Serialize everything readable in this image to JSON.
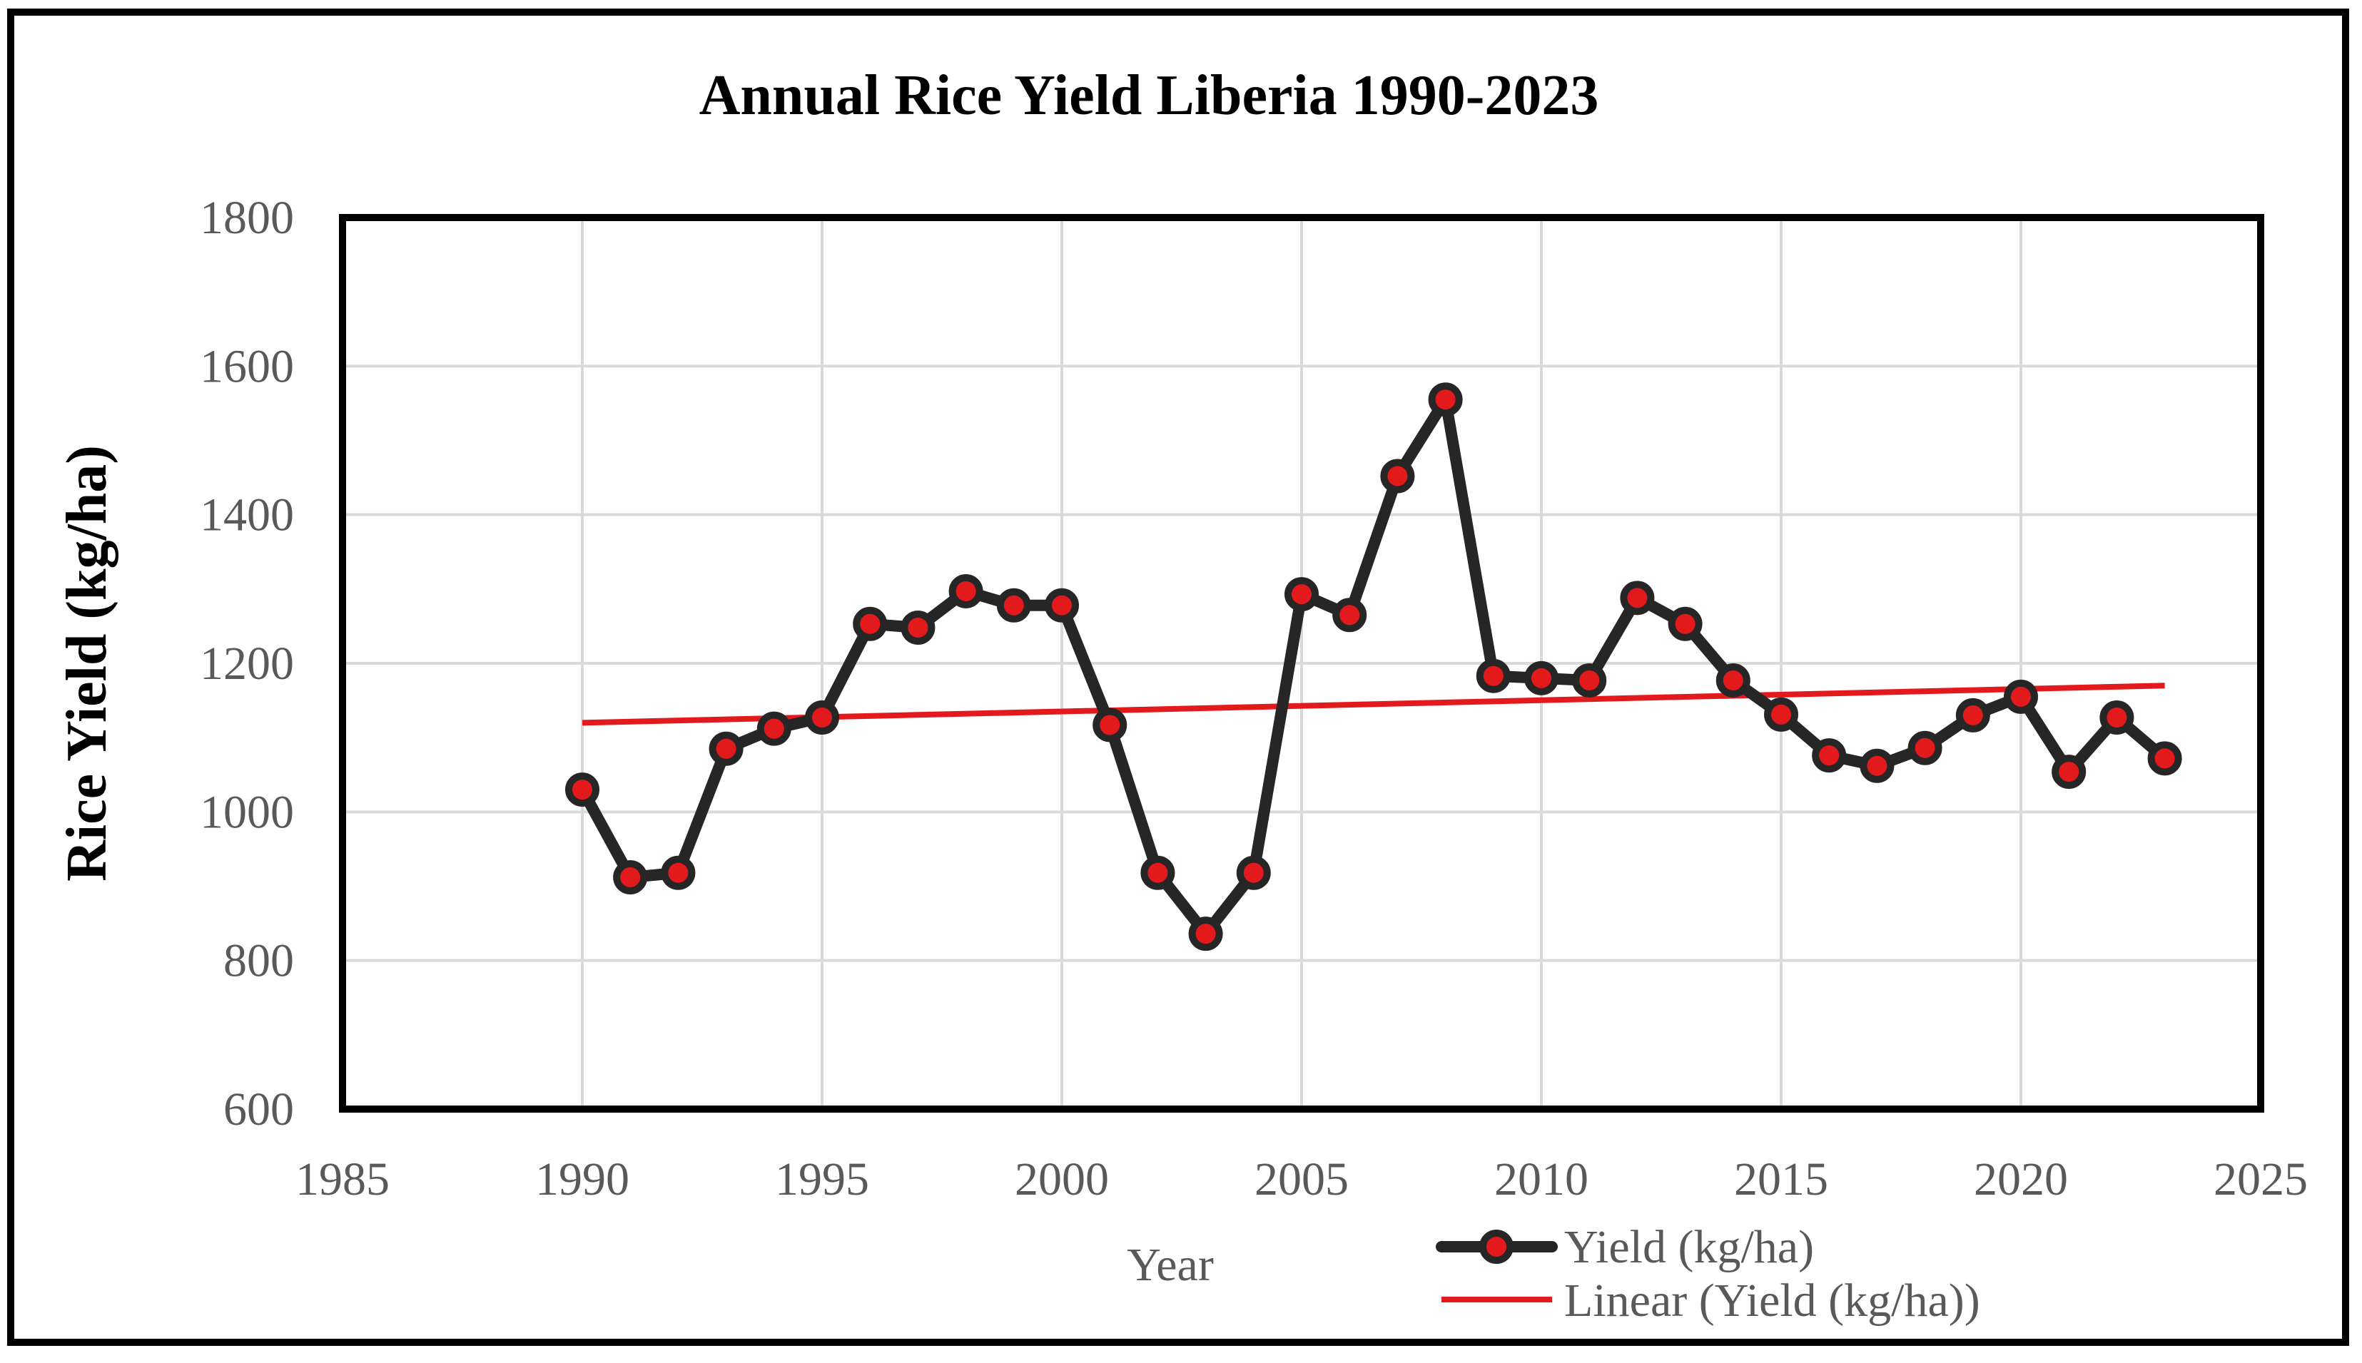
{
  "chart_data": {
    "type": "line",
    "title": "Annual  Rice  Yield  Liberia  1990-2023",
    "xlabel": "Year",
    "ylabel": "Rice Yield  (kg/ha)",
    "xlim": [
      1985,
      2025
    ],
    "ylim": [
      600,
      1800
    ],
    "x_ticks": [
      "1985",
      "1990",
      "1995",
      "2000",
      "2005",
      "2010",
      "2015",
      "2020",
      "2025"
    ],
    "y_ticks": [
      "600",
      "800",
      "1000",
      "1200",
      "1400",
      "1600",
      "1800"
    ],
    "grid": true,
    "legend_position": "bottom-right",
    "series": [
      {
        "name": "Yield (kg/ha)",
        "line_color": "#262626",
        "marker_color": "#e31a1c",
        "x": [
          1990,
          1991,
          1992,
          1993,
          1994,
          1995,
          1996,
          1997,
          1998,
          1999,
          2000,
          2001,
          2002,
          2003,
          2004,
          2005,
          2006,
          2007,
          2008,
          2009,
          2010,
          2011,
          2012,
          2013,
          2014,
          2015,
          2016,
          2017,
          2018,
          2019,
          2020,
          2021,
          2022,
          2023
        ],
        "values": [
          1030,
          912,
          918,
          1085,
          1112,
          1127,
          1253,
          1248,
          1297,
          1278,
          1278,
          1117,
          918,
          836,
          918,
          1293,
          1265,
          1452,
          1555,
          1183,
          1180,
          1177,
          1288,
          1253,
          1177,
          1131,
          1076,
          1062,
          1086,
          1130,
          1155,
          1054,
          1127,
          1072
        ]
      },
      {
        "name": "Linear (Yield (kg/ha))",
        "line_color": "#e31a1c",
        "x": [
          1990,
          2023
        ],
        "values": [
          1120,
          1170
        ]
      }
    ]
  }
}
